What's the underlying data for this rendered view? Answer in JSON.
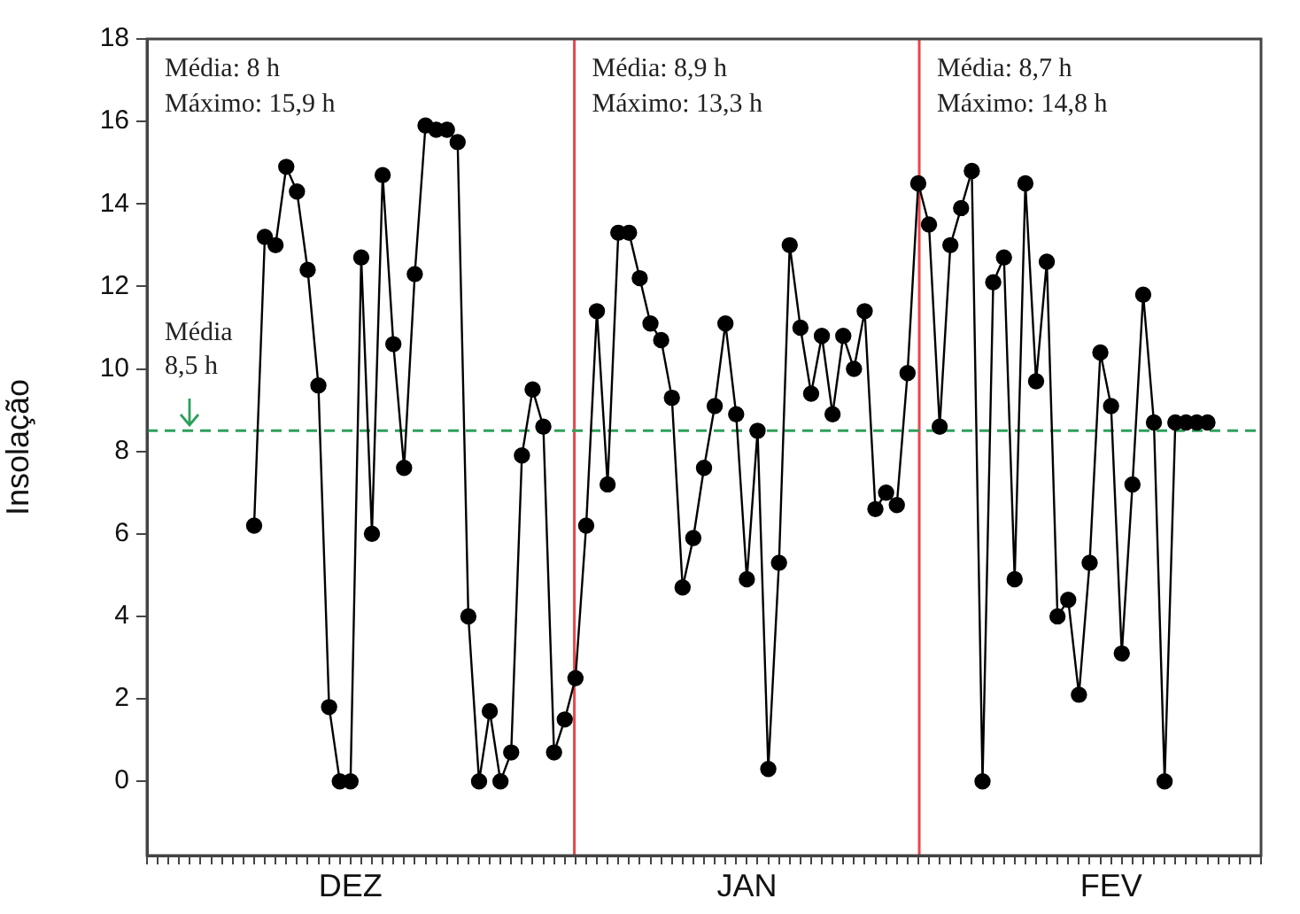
{
  "chart_data": {
    "type": "line",
    "ylabel": "Insolação",
    "categories": [
      null,
      null,
      null,
      null,
      null,
      null,
      null,
      null,
      null,
      null,
      null,
      null,
      null,
      null,
      null,
      null,
      null,
      null,
      null,
      "DEZ",
      null,
      null,
      null,
      null,
      null,
      null,
      null,
      null,
      null,
      null,
      null,
      null,
      null,
      null,
      null,
      null,
      null,
      null,
      null,
      null,
      null,
      null,
      null,
      null,
      null,
      null,
      null,
      null,
      null,
      null,
      null,
      null,
      null,
      null,
      null,
      null,
      "JAN",
      null,
      null,
      null,
      null,
      null,
      null,
      null,
      null,
      null,
      null,
      null,
      null,
      null,
      null,
      null,
      null,
      null,
      null,
      null,
      null,
      null,
      null,
      null,
      null,
      null,
      null,
      null,
      null,
      null,
      null,
      null,
      null,
      null,
      "FEV",
      null,
      null,
      null,
      null,
      null,
      null,
      null,
      null,
      null,
      null,
      null,
      null,
      null,
      null
    ],
    "series": [
      {
        "color": "#000000",
        "values": [
          null,
          null,
          null,
          null,
          null,
          null,
          null,
          null,
          null,
          null,
          6.2,
          13.2,
          13.0,
          14.9,
          14.3,
          12.4,
          9.6,
          1.8,
          0,
          0,
          12.7,
          6.0,
          14.7,
          10.6,
          7.6,
          12.3,
          15.9,
          15.8,
          15.8,
          15.5,
          4.0,
          0,
          1.7,
          0,
          0.7,
          7.9,
          9.5,
          8.6,
          0.7,
          1.5,
          2.5,
          6.2,
          11.4,
          7.2,
          13.3,
          13.3,
          12.2,
          11.1,
          10.7,
          9.3,
          4.7,
          5.9,
          7.6,
          9.1,
          11.1,
          8.9,
          4.9,
          8.5,
          0.3,
          5.3,
          13.0,
          11.0,
          9.4,
          10.8,
          8.9,
          10.8,
          10.0,
          11.4,
          6.6,
          7.0,
          6.7,
          9.9,
          14.5,
          13.5,
          8.6,
          13.0,
          13.9,
          14.8,
          0,
          12.1,
          12.7,
          4.9,
          14.5,
          9.7,
          12.6,
          4.0,
          4.4,
          2.1,
          5.3,
          10.4,
          9.1,
          3.1,
          7.2,
          11.8,
          8.7,
          0,
          8.7,
          8.7,
          8.7,
          8.7,
          null,
          null,
          null,
          null,
          null
        ]
      }
    ],
    "ylim": [
      -1.8,
      18
    ],
    "yticks": [
      0,
      2,
      4,
      6,
      8,
      10,
      12,
      14,
      16,
      18
    ],
    "marker": "circle",
    "line_style": "solid",
    "ref_lines": [
      {
        "axis": "y",
        "value": 8.5,
        "label": "Média\n8,5 h",
        "color": "#2ca05a",
        "line_style": "dashed"
      }
    ],
    "annotations": [
      "Média: 8 h\nMáximo: 15,9 h",
      "Média: 8,9 h\nMáximo: 13,3 h",
      "Média: 8,7 h\nMáximo: 14,8 h"
    ]
  }
}
